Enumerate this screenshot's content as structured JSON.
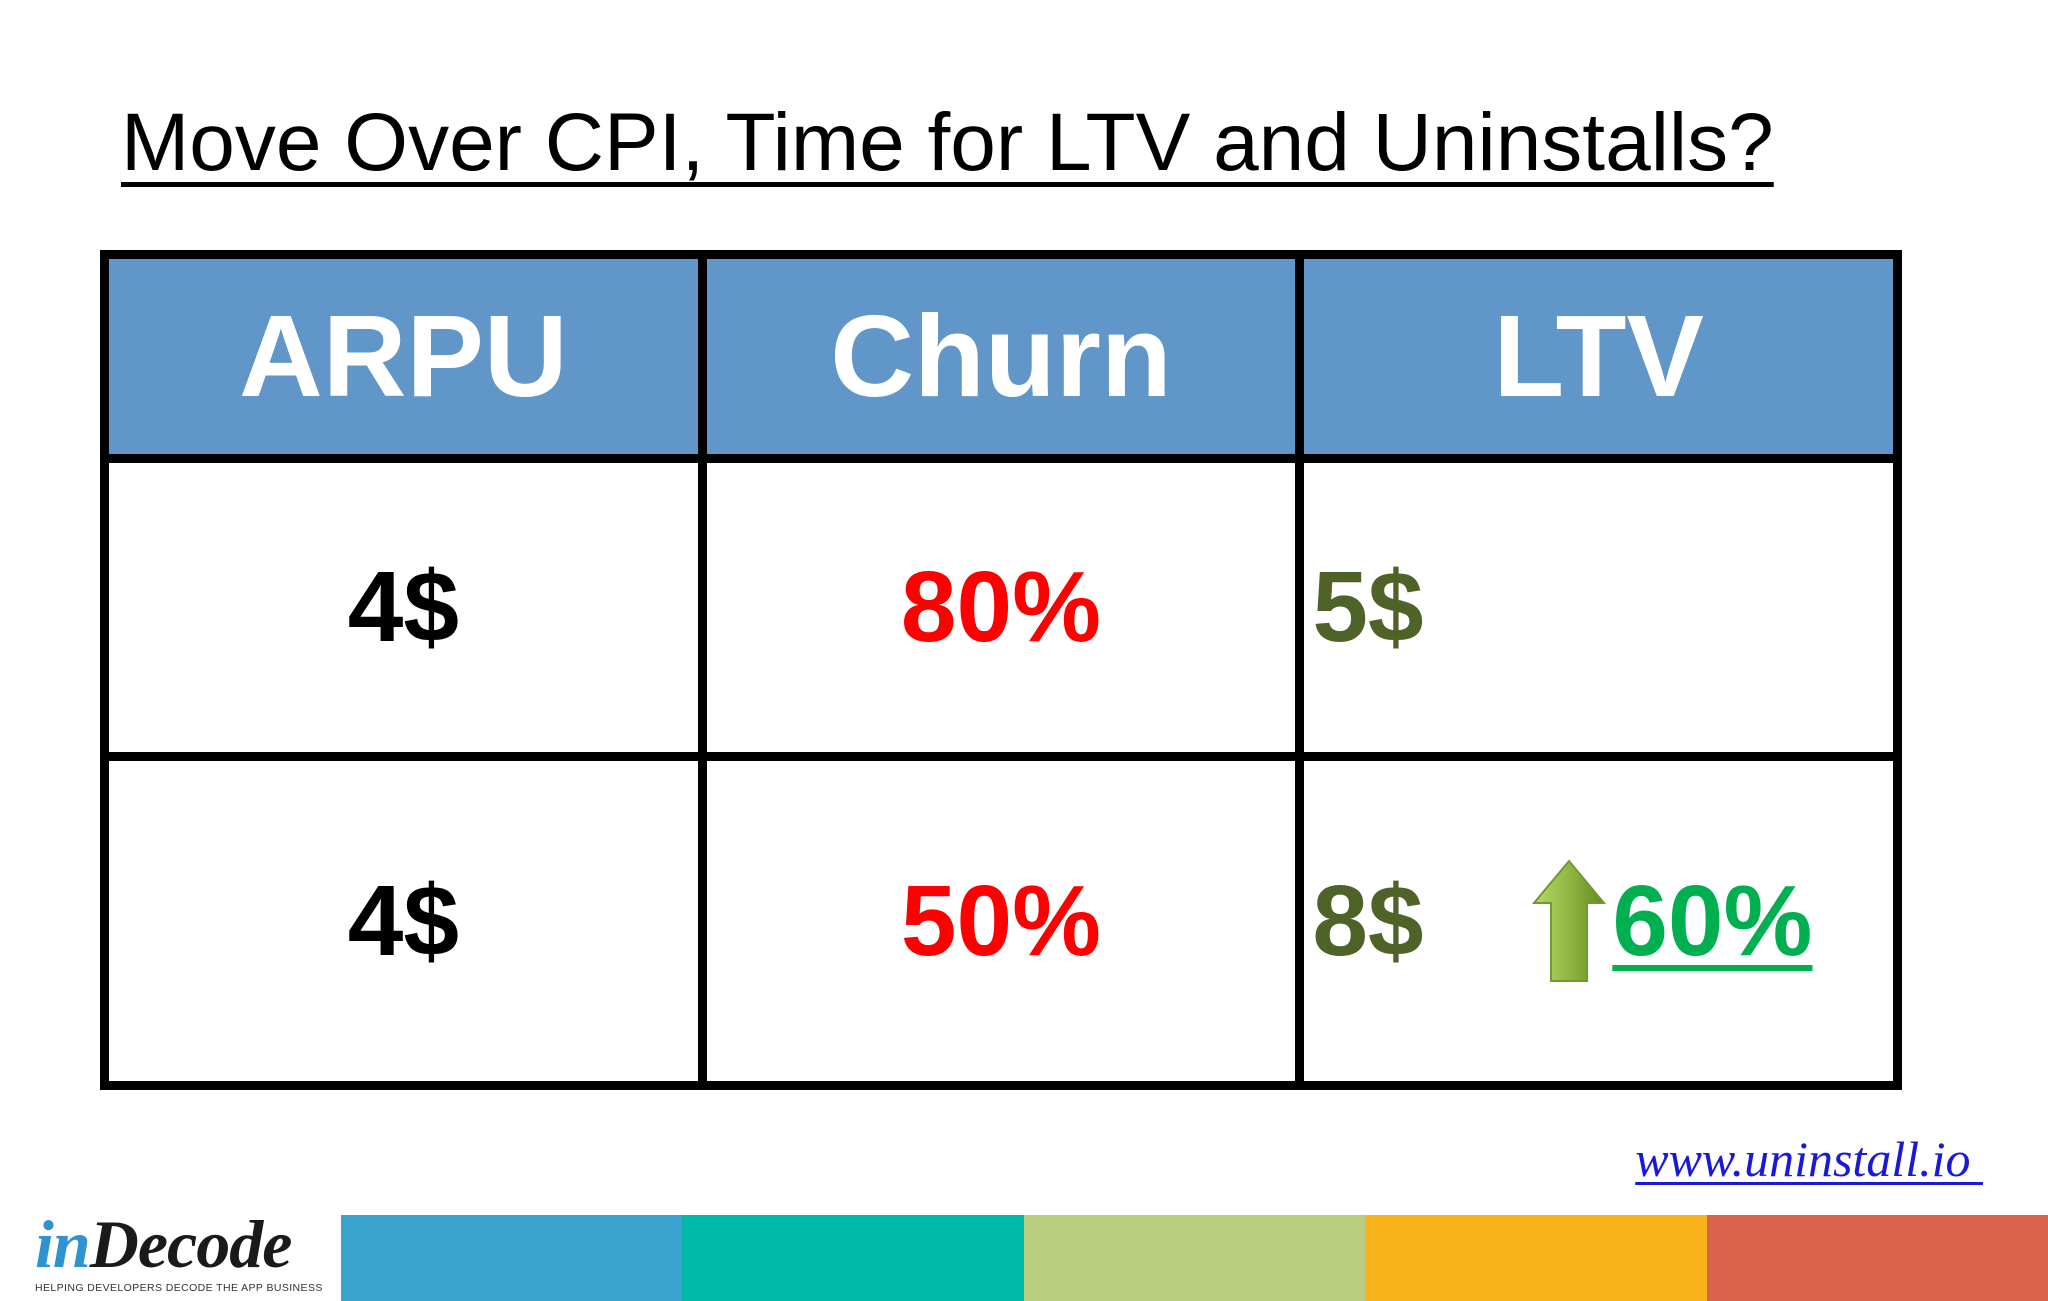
{
  "title": "Move Over CPI, Time for LTV and Uninstalls?",
  "table": {
    "headers": [
      "ARPU",
      "Churn",
      "LTV"
    ],
    "rows": [
      {
        "arpu": "4$",
        "churn": "80%",
        "ltv": "5$"
      },
      {
        "arpu": "4$",
        "churn": "50%",
        "ltv": "8$",
        "increase": "60%"
      }
    ]
  },
  "website": "www.uninstall.io ",
  "logo": {
    "part1": "in",
    "part2": "Decode",
    "tagline": "HELPING DEVELOPERS DECODE THE APP BUSINESS"
  },
  "colors": {
    "header_bg": "#6196c9",
    "churn": "#fd0000",
    "ltv": "#4f6228",
    "increase": "#00b050",
    "stripe": [
      "#3ba3d0",
      "#00b9a6",
      "#bacd80",
      "#f8b41a",
      "#d9634a"
    ]
  },
  "icons": {
    "increase": "up-arrow-icon"
  }
}
